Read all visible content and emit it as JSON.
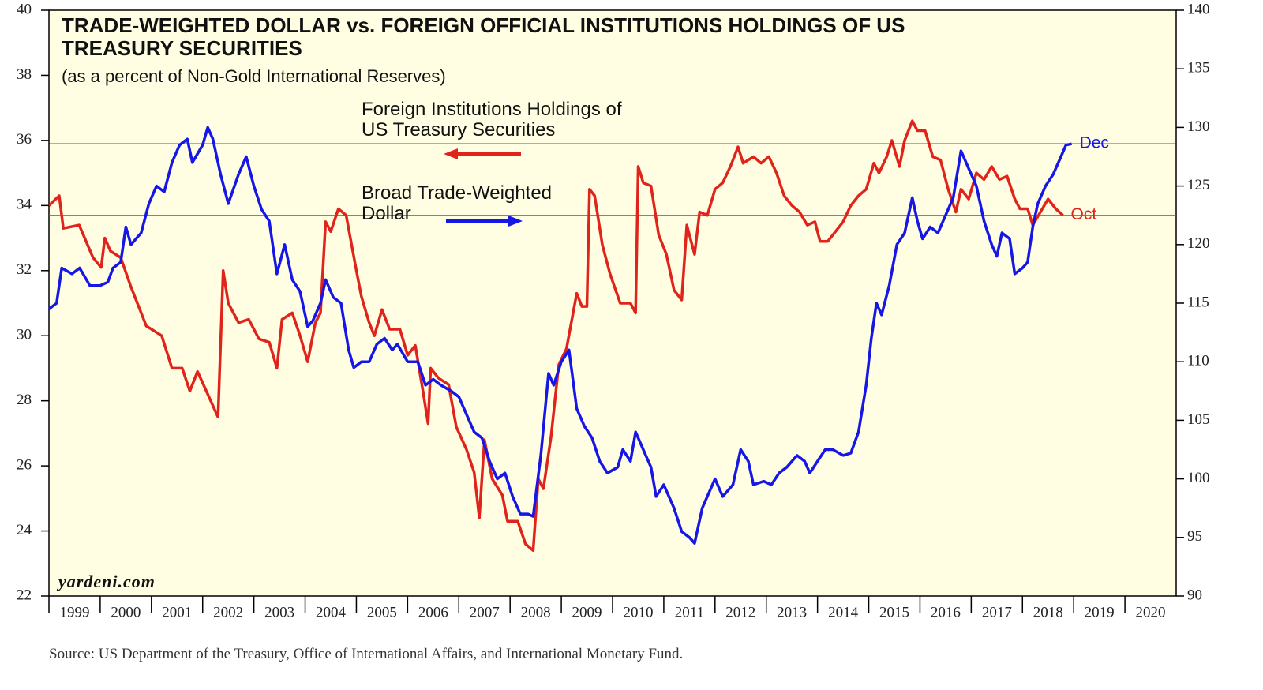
{
  "chart_data": {
    "type": "line",
    "title": "TRADE-WEIGHTED DOLLAR vs. FOREIGN OFFICIAL INSTITUTIONS HOLDINGS OF US TREASURY SECURITIES",
    "subtitle": "(as a percent of Non-Gold International Reserves)",
    "watermark": "yardeni.com",
    "source": "Source: US Department of the Treasury, Office of International Affairs, and International Monetary Fund.",
    "xlim": [
      1999,
      2021
    ],
    "xticks": [
      1999,
      2000,
      2001,
      2002,
      2003,
      2004,
      2005,
      2006,
      2007,
      2008,
      2009,
      2010,
      2011,
      2012,
      2013,
      2014,
      2015,
      2016,
      2017,
      2018,
      2019,
      2020
    ],
    "ylim": [
      22,
      40
    ],
    "yticks": [
      22,
      24,
      26,
      28,
      30,
      32,
      34,
      36,
      38,
      40
    ],
    "y2lim": [
      90,
      140
    ],
    "y2ticks": [
      90,
      95,
      100,
      105,
      110,
      115,
      120,
      125,
      130,
      135,
      140
    ],
    "series": [
      {
        "name": "Foreign Institutions Holdings of US Treasury Securities",
        "color": "#e0241b",
        "end_label": "Oct",
        "x": [
          1999.0,
          1999.2,
          1999.28,
          1999.59,
          1999.86,
          2000.02,
          2000.09,
          2000.2,
          2000.4,
          2000.6,
          2000.9,
          2001.2,
          2001.4,
          2001.6,
          2001.75,
          2001.9,
          2002.1,
          2002.3,
          2002.4,
          2002.5,
          2002.7,
          2002.9,
          2003.1,
          2003.3,
          2003.45,
          2003.55,
          2003.75,
          2003.9,
          2004.05,
          2004.2,
          2004.3,
          2004.4,
          2004.5,
          2004.65,
          2004.8,
          2005.0,
          2005.1,
          2005.25,
          2005.35,
          2005.5,
          2005.65,
          2005.85,
          2006.0,
          2006.15,
          2006.3,
          2006.4,
          2006.45,
          2006.6,
          2006.8,
          2006.95,
          2007.15,
          2007.3,
          2007.4,
          2007.5,
          2007.65,
          2007.85,
          2007.95,
          2008.15,
          2008.3,
          2008.45,
          2008.55,
          2008.65,
          2008.8,
          2008.95,
          2009.1,
          2009.3,
          2009.4,
          2009.5,
          2009.55,
          2009.65,
          2009.8,
          2009.95,
          2010.15,
          2010.35,
          2010.45,
          2010.5,
          2010.6,
          2010.75,
          2010.9,
          2011.05,
          2011.2,
          2011.35,
          2011.45,
          2011.6,
          2011.7,
          2011.85,
          2012.0,
          2012.15,
          2012.3,
          2012.45,
          2012.55,
          2012.75,
          2012.9,
          2013.05,
          2013.2,
          2013.35,
          2013.5,
          2013.65,
          2013.8,
          2013.95,
          2014.05,
          2014.2,
          2014.35,
          2014.5,
          2014.65,
          2014.8,
          2014.95,
          2015.1,
          2015.2,
          2015.35,
          2015.45,
          2015.6,
          2015.7,
          2015.85,
          2015.95,
          2016.1,
          2016.25,
          2016.4,
          2016.55,
          2016.7,
          2016.8,
          2016.95,
          2017.1,
          2017.25,
          2017.4,
          2017.55,
          2017.7,
          2017.85,
          2017.95,
          2018.1,
          2018.2,
          2018.35,
          2018.5,
          2018.65,
          2018.79
        ],
        "values": [
          34.0,
          34.3,
          33.3,
          33.4,
          32.4,
          32.1,
          33.0,
          32.6,
          32.4,
          31.5,
          30.3,
          30.0,
          29.0,
          29.0,
          28.3,
          28.9,
          28.2,
          27.5,
          32.0,
          31.0,
          30.4,
          30.5,
          29.9,
          29.8,
          29.0,
          30.5,
          30.7,
          30.0,
          29.2,
          30.4,
          30.7,
          33.5,
          33.2,
          33.9,
          33.7,
          32.0,
          31.2,
          30.4,
          30.0,
          30.8,
          30.2,
          30.2,
          29.4,
          29.7,
          28.3,
          27.3,
          29.0,
          28.7,
          28.5,
          27.2,
          26.5,
          25.8,
          24.4,
          26.8,
          25.6,
          25.1,
          24.3,
          24.3,
          23.6,
          23.4,
          25.6,
          25.3,
          26.9,
          29.1,
          29.6,
          31.3,
          30.9,
          30.9,
          34.5,
          34.3,
          32.8,
          31.9,
          31.0,
          31.0,
          30.7,
          35.2,
          34.7,
          34.6,
          33.1,
          32.5,
          31.4,
          31.1,
          33.4,
          32.5,
          33.8,
          33.7,
          34.5,
          34.7,
          35.2,
          35.8,
          35.3,
          35.5,
          35.3,
          35.5,
          35.0,
          34.3,
          34.0,
          33.8,
          33.4,
          33.5,
          32.9,
          32.9,
          33.2,
          33.5,
          34.0,
          34.3,
          34.5,
          35.3,
          35.0,
          35.5,
          36.0,
          35.2,
          36.0,
          36.6,
          36.3,
          36.3,
          35.5,
          35.4,
          34.5,
          33.8,
          34.5,
          34.2,
          35.0,
          34.8,
          35.2,
          34.8,
          34.9,
          34.2,
          33.9,
          33.9,
          33.4,
          33.8,
          34.2,
          33.9,
          33.7
        ]
      },
      {
        "name": "Broad Trade-Weighted Dollar",
        "color": "#1616e6",
        "axis": "y2",
        "end_label": "Dec",
        "x": [
          1999.0,
          1999.15,
          1999.25,
          1999.45,
          1999.6,
          1999.8,
          2000.0,
          2000.15,
          2000.25,
          2000.4,
          2000.5,
          2000.6,
          2000.8,
          2000.95,
          2001.1,
          2001.25,
          2001.4,
          2001.55,
          2001.7,
          2001.8,
          2002.0,
          2002.1,
          2002.2,
          2002.35,
          2002.5,
          2002.7,
          2002.85,
          2003.0,
          2003.15,
          2003.3,
          2003.45,
          2003.6,
          2003.75,
          2003.9,
          2004.05,
          2004.15,
          2004.3,
          2004.4,
          2004.55,
          2004.7,
          2004.85,
          2004.95,
          2005.1,
          2005.25,
          2005.4,
          2005.55,
          2005.7,
          2005.8,
          2006.0,
          2006.2,
          2006.35,
          2006.5,
          2006.65,
          2006.85,
          2007.0,
          2007.15,
          2007.3,
          2007.45,
          2007.6,
          2007.75,
          2007.9,
          2008.05,
          2008.2,
          2008.35,
          2008.45,
          2008.6,
          2008.75,
          2008.85,
          2009.0,
          2009.15,
          2009.3,
          2009.45,
          2009.6,
          2009.75,
          2009.9,
          2010.1,
          2010.2,
          2010.35,
          2010.45,
          2010.6,
          2010.75,
          2010.85,
          2011.0,
          2011.2,
          2011.35,
          2011.5,
          2011.6,
          2011.75,
          2011.9,
          2012.0,
          2012.15,
          2012.35,
          2012.5,
          2012.65,
          2012.75,
          2012.95,
          2013.1,
          2013.25,
          2013.4,
          2013.6,
          2013.75,
          2013.85,
          2014.0,
          2014.15,
          2014.3,
          2014.5,
          2014.65,
          2014.8,
          2014.95,
          2015.05,
          2015.15,
          2015.25,
          2015.4,
          2015.55,
          2015.7,
          2015.85,
          2015.95,
          2016.05,
          2016.2,
          2016.35,
          2016.5,
          2016.65,
          2016.8,
          2016.95,
          2017.1,
          2017.25,
          2017.4,
          2017.5,
          2017.6,
          2017.75,
          2017.85,
          2018.0,
          2018.1,
          2018.2,
          2018.3,
          2018.45,
          2018.6,
          2018.75,
          2018.85,
          2018.96
        ],
        "values": [
          114.5,
          115,
          118,
          117.5,
          118,
          116.5,
          116.5,
          116.8,
          118,
          118.5,
          121.5,
          120,
          121,
          123.5,
          125,
          124.5,
          127,
          128.5,
          129,
          127,
          128.5,
          130,
          129,
          126,
          123.5,
          126,
          127.5,
          125,
          123,
          122,
          117.5,
          120,
          117,
          116,
          113,
          113.5,
          115,
          117,
          115.5,
          115,
          111,
          109.5,
          110,
          110,
          111.5,
          112,
          111,
          111.5,
          110,
          110,
          108,
          108.5,
          108,
          107.5,
          107,
          105.5,
          104,
          103.5,
          101.5,
          100,
          100.5,
          98.5,
          97,
          97,
          96.8,
          102,
          109,
          108,
          110,
          111,
          106,
          104.5,
          103.5,
          101.5,
          100.5,
          101,
          102.5,
          101.5,
          104,
          102.5,
          101,
          98.5,
          99.5,
          97.5,
          95.5,
          95,
          94.5,
          97.5,
          99,
          100,
          98.5,
          99.5,
          102.5,
          101.5,
          99.5,
          99.8,
          99.5,
          100.5,
          101,
          102,
          101.5,
          100.5,
          101.5,
          102.5,
          102.5,
          102,
          102.2,
          104,
          108,
          112,
          115,
          114,
          116.5,
          120,
          121,
          124,
          122,
          120.5,
          121.5,
          121,
          122.5,
          124,
          128,
          126.5,
          125,
          122,
          120,
          119,
          121,
          120.5,
          117.5,
          118,
          118.5,
          121.5,
          123.5,
          125,
          126,
          127.5,
          128.5,
          128.6
        ]
      }
    ]
  }
}
